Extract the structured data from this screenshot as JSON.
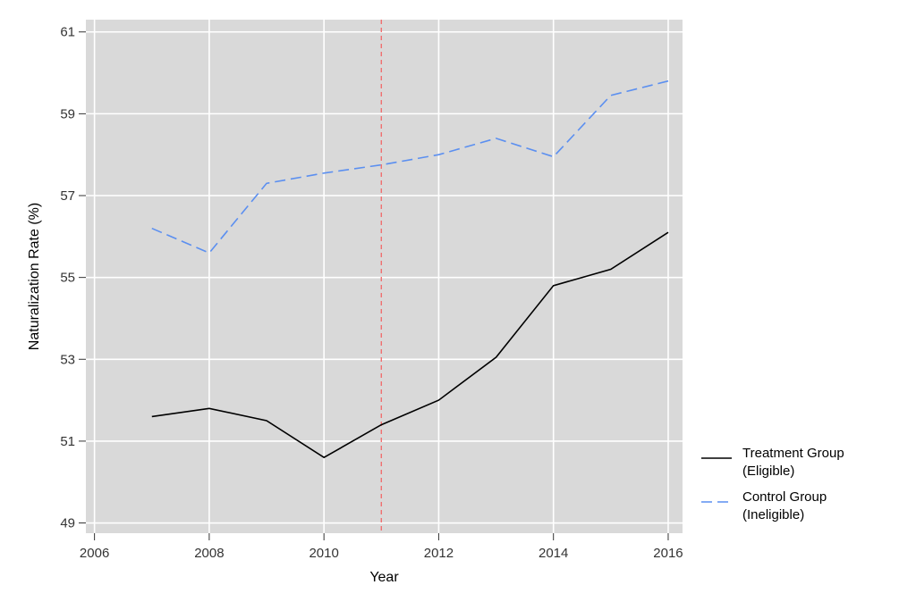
{
  "chart_data": {
    "type": "line",
    "xlabel": "Year",
    "ylabel": "Naturalization Rate (%)",
    "xlim": [
      2005.85,
      2016.25
    ],
    "ylim": [
      48.75,
      61.3
    ],
    "xticks": [
      2006,
      2008,
      2010,
      2012,
      2014,
      2016
    ],
    "xtick_labels": [
      "2006",
      "2008",
      "2010",
      "2012",
      "2014",
      "2016"
    ],
    "yticks": [
      49,
      51,
      53,
      55,
      57,
      59,
      61
    ],
    "ytick_labels": [
      "49",
      "51",
      "53",
      "55",
      "57",
      "59",
      "61"
    ],
    "grid": true,
    "background": "#d9d9d9",
    "legend_position": "right",
    "x": [
      2007,
      2008,
      2009,
      2010,
      2011,
      2012,
      2013,
      2014,
      2015,
      2016
    ],
    "series": [
      {
        "name": "Treatment Group\n(Eligible)",
        "legend_lines": [
          "Treatment Group",
          "(Eligible)"
        ],
        "values": [
          51.6,
          51.8,
          51.5,
          50.6,
          51.4,
          52.0,
          53.05,
          54.8,
          55.2,
          56.1
        ],
        "color": "#000000",
        "style": "solid"
      },
      {
        "name": "Control Group\n(Ineligible)",
        "legend_lines": [
          "Control Group",
          "(Ineligible)"
        ],
        "values": [
          56.2,
          55.6,
          57.3,
          57.55,
          57.75,
          58.0,
          58.4,
          57.95,
          59.45,
          59.8
        ],
        "color": "#5b8ff0",
        "style": "dashed"
      }
    ],
    "reference_line": {
      "x": 2011,
      "color": "#f07070",
      "style": "dashed"
    }
  }
}
